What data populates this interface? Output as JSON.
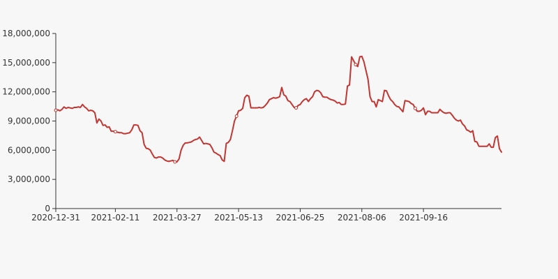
{
  "colors": {
    "series": "#c23531",
    "axis": "#333333",
    "background": "#f7f7f7"
  },
  "chart_data": {
    "type": "line",
    "title": "",
    "xlabel": "",
    "ylabel": "",
    "grid": false,
    "legend": "none",
    "ylim": [
      0,
      18000000
    ],
    "y_ticks": [
      0,
      3000000,
      6000000,
      9000000,
      12000000,
      15000000,
      18000000
    ],
    "y_tick_labels": [
      "0",
      "3,000,000",
      "6,000,000",
      "9,000,000",
      "12,000,000",
      "15,000,000",
      "18,000,000"
    ],
    "x_tick_labels": [
      "2020-12-31",
      "2021-02-11",
      "2021-03-27",
      "2021-05-13",
      "2021-06-25",
      "2021-08-06",
      "2021-09-16"
    ],
    "x_tick_indices": [
      0,
      29,
      59,
      89,
      119,
      149,
      179
    ],
    "series": [
      {
        "values": [
          10100000,
          10150000,
          10050000,
          10200000,
          10450000,
          10300000,
          10400000,
          10350000,
          10300000,
          10400000,
          10400000,
          10450000,
          10400000,
          10700000,
          10450000,
          10300000,
          10050000,
          10100000,
          10050000,
          9850000,
          8800000,
          9200000,
          9000000,
          8550000,
          8600000,
          8350000,
          8400000,
          7950000,
          7950000,
          7900000,
          7850000,
          7800000,
          7800000,
          7700000,
          7700000,
          7750000,
          7800000,
          8100000,
          8600000,
          8600000,
          8550000,
          8000000,
          7800000,
          6600000,
          6200000,
          6150000,
          6000000,
          5600000,
          5250000,
          5200000,
          5300000,
          5300000,
          5200000,
          5000000,
          4900000,
          4850000,
          4900000,
          4950000,
          4800000,
          4800000,
          5100000,
          6000000,
          6500000,
          6750000,
          6750000,
          6800000,
          6850000,
          7000000,
          7100000,
          7150000,
          7350000,
          7000000,
          6650000,
          6700000,
          6650000,
          6600000,
          6250000,
          5800000,
          5700000,
          5550000,
          5450000,
          5000000,
          4850000,
          6700000,
          6800000,
          7100000,
          8000000,
          9000000,
          9500000,
          10050000,
          10100000,
          10300000,
          11400000,
          11650000,
          11550000,
          10350000,
          10350000,
          10350000,
          10350000,
          10400000,
          10350000,
          10400000,
          10600000,
          10850000,
          11200000,
          11300000,
          11400000,
          11350000,
          11400000,
          11500000,
          12450000,
          11700000,
          11550000,
          11100000,
          11000000,
          10700000,
          10400000,
          10350000,
          10600000,
          10700000,
          11000000,
          11200000,
          11300000,
          11000000,
          11300000,
          11500000,
          12000000,
          12150000,
          12100000,
          11900000,
          11500000,
          11450000,
          11450000,
          11300000,
          11200000,
          11150000,
          11050000,
          10850000,
          10900000,
          10700000,
          10700000,
          10750000,
          12600000,
          12700000,
          15600000,
          15200000,
          14800000,
          14600000,
          15600000,
          15650000,
          15100000,
          14200000,
          13300000,
          11500000,
          11000000,
          11000000,
          10450000,
          11200000,
          11100000,
          11000000,
          12150000,
          12100000,
          11600000,
          11200000,
          11000000,
          10700000,
          10500000,
          10450000,
          10200000,
          9950000,
          11100000,
          11050000,
          11000000,
          10800000,
          10700000,
          10300000,
          10000000,
          10000000,
          10100000,
          10350000,
          9650000,
          10000000,
          10000000,
          9850000,
          9850000,
          9850000,
          9850000,
          10200000,
          10000000,
          9850000,
          9800000,
          9850000,
          9850000,
          9600000,
          9300000,
          9100000,
          9000000,
          9100000,
          8700000,
          8500000,
          8100000,
          8000000,
          7850000,
          8000000,
          6900000,
          6850000,
          6400000,
          6400000,
          6400000,
          6400000,
          6400000,
          6650000,
          6300000,
          6300000,
          7300000,
          7450000,
          6150000,
          5800000
        ]
      }
    ],
    "markers": [
      0,
      29,
      58,
      88,
      117,
      146,
      175
    ]
  }
}
